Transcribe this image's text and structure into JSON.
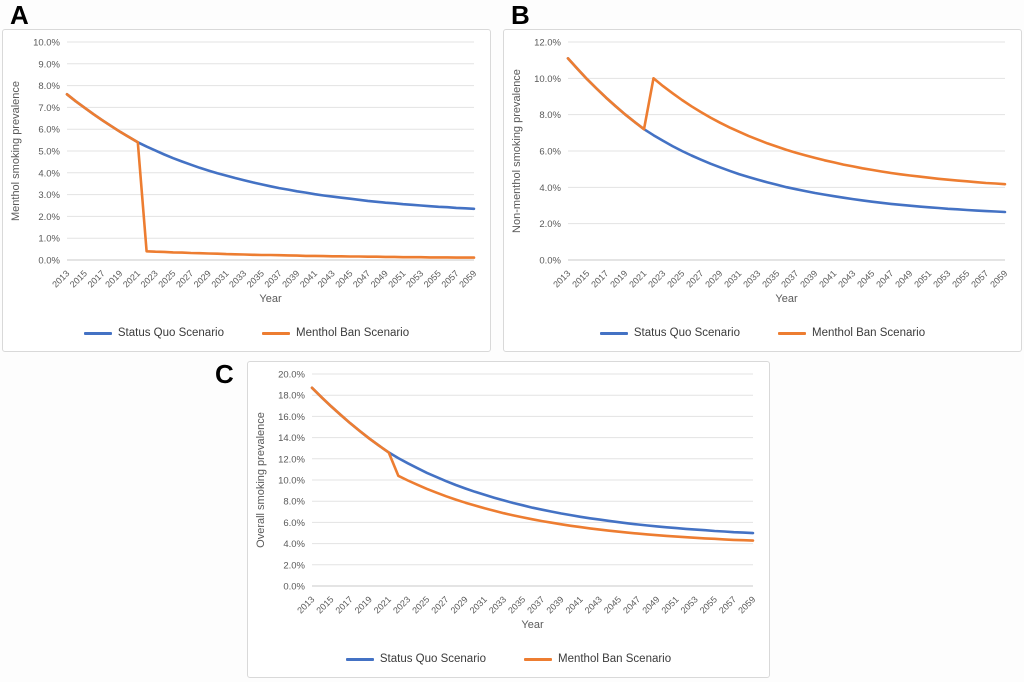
{
  "panels": [
    {
      "label": "A"
    },
    {
      "label": "B"
    },
    {
      "label": "C"
    }
  ],
  "colors": {
    "status_quo": "#4472C4",
    "menthol_ban": "#ED7D31",
    "gridline": "#e3e3e3",
    "axis_line": "#c9c9c9",
    "axis_text": "#595959",
    "panel_border": "#d9d9d9"
  },
  "chart_data": [
    {
      "type": "line",
      "panel": "A",
      "xlabel": "Year",
      "ylabel": "Menthol smoking prevalence",
      "ylim": [
        0,
        10
      ],
      "ytick_step": 1,
      "y_tick_labels": [
        "10.0%",
        "9.0%",
        "8.0%",
        "7.0%",
        "6.0%",
        "5.0%",
        "4.0%",
        "3.0%",
        "2.0%",
        "1.0%",
        "0.0%"
      ],
      "x": [
        2013,
        2014,
        2015,
        2016,
        2017,
        2018,
        2019,
        2020,
        2021,
        2022,
        2023,
        2024,
        2025,
        2026,
        2027,
        2028,
        2029,
        2030,
        2031,
        2032,
        2033,
        2034,
        2035,
        2036,
        2037,
        2038,
        2039,
        2040,
        2041,
        2042,
        2043,
        2044,
        2045,
        2046,
        2047,
        2048,
        2049,
        2050,
        2051,
        2052,
        2053,
        2054,
        2055,
        2056,
        2057,
        2058,
        2059
      ],
      "x_tick_labels": [
        "2013",
        "2015",
        "2017",
        "2019",
        "2021",
        "2023",
        "2025",
        "2027",
        "2029",
        "2031",
        "2033",
        "2035",
        "2037",
        "2039",
        "2041",
        "2043",
        "2045",
        "2047",
        "2049",
        "2051",
        "2053",
        "2055",
        "2057",
        "2059"
      ],
      "legend_position": "bottom",
      "grid": true,
      "series": [
        {
          "name": "Status Quo Scenario",
          "color": "#4472C4",
          "values": [
            7.6,
            7.28,
            6.98,
            6.69,
            6.41,
            6.14,
            5.88,
            5.64,
            5.4,
            5.2,
            5.02,
            4.84,
            4.67,
            4.52,
            4.37,
            4.23,
            4.1,
            3.98,
            3.87,
            3.76,
            3.66,
            3.56,
            3.47,
            3.38,
            3.3,
            3.23,
            3.15,
            3.09,
            3.02,
            2.96,
            2.91,
            2.86,
            2.81,
            2.76,
            2.71,
            2.67,
            2.63,
            2.6,
            2.56,
            2.53,
            2.5,
            2.47,
            2.44,
            2.42,
            2.39,
            2.37,
            2.35
          ]
        },
        {
          "name": "Menthol Ban Scenario",
          "color": "#ED7D31",
          "values": [
            7.6,
            7.28,
            6.98,
            6.69,
            6.41,
            6.14,
            5.88,
            5.64,
            5.4,
            0.4,
            0.38,
            0.37,
            0.35,
            0.34,
            0.32,
            0.31,
            0.3,
            0.29,
            0.27,
            0.26,
            0.25,
            0.24,
            0.23,
            0.23,
            0.22,
            0.21,
            0.2,
            0.19,
            0.19,
            0.18,
            0.17,
            0.17,
            0.16,
            0.16,
            0.15,
            0.15,
            0.14,
            0.14,
            0.13,
            0.13,
            0.13,
            0.12,
            0.12,
            0.12,
            0.11,
            0.11,
            0.11
          ]
        }
      ]
    },
    {
      "type": "line",
      "panel": "B",
      "xlabel": "Year",
      "ylabel": "Non-menthol smoking prevalence",
      "ylim": [
        0,
        12
      ],
      "ytick_step": 2,
      "y_tick_labels": [
        "12.0%",
        "10.0%",
        "8.0%",
        "6.0%",
        "4.0%",
        "2.0%",
        "0.0%"
      ],
      "x": [
        2013,
        2014,
        2015,
        2016,
        2017,
        2018,
        2019,
        2020,
        2021,
        2022,
        2023,
        2024,
        2025,
        2026,
        2027,
        2028,
        2029,
        2030,
        2031,
        2032,
        2033,
        2034,
        2035,
        2036,
        2037,
        2038,
        2039,
        2040,
        2041,
        2042,
        2043,
        2044,
        2045,
        2046,
        2047,
        2048,
        2049,
        2050,
        2051,
        2052,
        2053,
        2054,
        2055,
        2056,
        2057,
        2058,
        2059
      ],
      "x_tick_labels": [
        "2013",
        "2015",
        "2017",
        "2019",
        "2021",
        "2023",
        "2025",
        "2027",
        "2029",
        "2031",
        "2033",
        "2035",
        "2037",
        "2039",
        "2041",
        "2043",
        "2045",
        "2047",
        "2049",
        "2051",
        "2053",
        "2055",
        "2057",
        "2059"
      ],
      "legend_position": "bottom",
      "grid": true,
      "series": [
        {
          "name": "Status Quo Scenario",
          "color": "#4472C4",
          "values": [
            11.1,
            10.52,
            9.96,
            9.44,
            8.94,
            8.47,
            8.02,
            7.6,
            7.2,
            6.87,
            6.56,
            6.27,
            6.0,
            5.75,
            5.52,
            5.3,
            5.1,
            4.91,
            4.73,
            4.57,
            4.42,
            4.27,
            4.14,
            4.01,
            3.9,
            3.79,
            3.69,
            3.6,
            3.51,
            3.43,
            3.35,
            3.28,
            3.21,
            3.15,
            3.09,
            3.04,
            2.99,
            2.94,
            2.9,
            2.86,
            2.82,
            2.79,
            2.75,
            2.72,
            2.69,
            2.67,
            2.64
          ]
        },
        {
          "name": "Menthol Ban Scenario",
          "color": "#ED7D31",
          "values": [
            11.1,
            10.52,
            9.96,
            9.44,
            8.94,
            8.47,
            8.02,
            7.6,
            7.2,
            10.0,
            9.57,
            9.18,
            8.81,
            8.46,
            8.14,
            7.84,
            7.56,
            7.3,
            7.06,
            6.83,
            6.62,
            6.42,
            6.24,
            6.06,
            5.9,
            5.76,
            5.62,
            5.49,
            5.37,
            5.25,
            5.15,
            5.05,
            4.96,
            4.87,
            4.79,
            4.72,
            4.65,
            4.59,
            4.53,
            4.47,
            4.42,
            4.37,
            4.33,
            4.28,
            4.24,
            4.21,
            4.17
          ]
        }
      ]
    },
    {
      "type": "line",
      "panel": "C",
      "xlabel": "Year",
      "ylabel": "Overall smoking prevalence",
      "ylim": [
        0,
        20
      ],
      "ytick_step": 2,
      "y_tick_labels": [
        "20.0%",
        "18.0%",
        "16.0%",
        "14.0%",
        "12.0%",
        "10.0%",
        "8.0%",
        "6.0%",
        "4.0%",
        "2.0%",
        "0.0%"
      ],
      "x": [
        2013,
        2014,
        2015,
        2016,
        2017,
        2018,
        2019,
        2020,
        2021,
        2022,
        2023,
        2024,
        2025,
        2026,
        2027,
        2028,
        2029,
        2030,
        2031,
        2032,
        2033,
        2034,
        2035,
        2036,
        2037,
        2038,
        2039,
        2040,
        2041,
        2042,
        2043,
        2044,
        2045,
        2046,
        2047,
        2048,
        2049,
        2050,
        2051,
        2052,
        2053,
        2054,
        2055,
        2056,
        2057,
        2058,
        2059
      ],
      "x_tick_labels": [
        "2013",
        "2015",
        "2017",
        "2019",
        "2021",
        "2023",
        "2025",
        "2027",
        "2029",
        "2031",
        "2033",
        "2035",
        "2037",
        "2039",
        "2041",
        "2043",
        "2045",
        "2047",
        "2049",
        "2051",
        "2053",
        "2055",
        "2057",
        "2059"
      ],
      "legend_position": "bottom",
      "grid": true,
      "series": [
        {
          "name": "Status Quo Scenario",
          "color": "#4472C4",
          "values": [
            18.7,
            17.8,
            16.94,
            16.13,
            15.35,
            14.61,
            13.9,
            13.24,
            12.6,
            12.07,
            11.58,
            11.11,
            10.67,
            10.27,
            9.89,
            9.53,
            9.2,
            8.89,
            8.6,
            8.33,
            8.08,
            7.83,
            7.61,
            7.39,
            7.2,
            7.02,
            6.84,
            6.69,
            6.53,
            6.39,
            6.26,
            6.14,
            6.02,
            5.91,
            5.8,
            5.71,
            5.62,
            5.54,
            5.46,
            5.39,
            5.32,
            5.26,
            5.19,
            5.14,
            5.08,
            5.04,
            4.99
          ]
        },
        {
          "name": "Menthol Ban Scenario",
          "color": "#ED7D31",
          "values": [
            18.7,
            17.8,
            16.94,
            16.13,
            15.35,
            14.61,
            13.9,
            13.24,
            12.6,
            10.4,
            9.95,
            9.55,
            9.16,
            8.8,
            8.46,
            8.15,
            7.86,
            7.59,
            7.33,
            7.09,
            6.87,
            6.66,
            6.47,
            6.29,
            6.12,
            5.97,
            5.82,
            5.68,
            5.56,
            5.43,
            5.32,
            5.22,
            5.12,
            5.03,
            4.94,
            4.87,
            4.79,
            4.73,
            4.66,
            4.6,
            4.55,
            4.49,
            4.45,
            4.4,
            4.35,
            4.32,
            4.28
          ]
        }
      ]
    }
  ]
}
